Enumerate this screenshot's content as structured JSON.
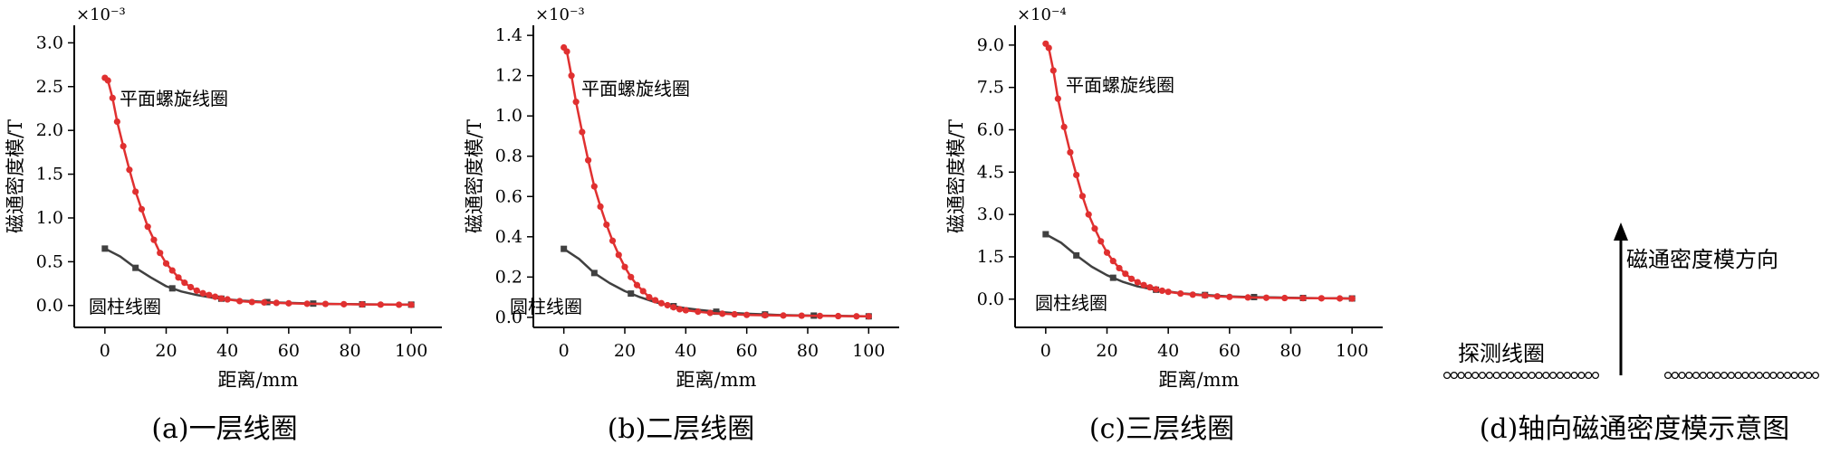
{
  "chart_data": [
    {
      "type": "line",
      "caption": "(a)一层线圈",
      "xlabel": "距离/mm",
      "ylabel": "磁通密度模/T",
      "exponent": "×10⁻³",
      "xlim": [
        -10,
        110
      ],
      "ylim": [
        -0.25,
        3.2
      ],
      "xticks": [
        "0",
        "20",
        "40",
        "60",
        "80",
        "100"
      ],
      "yticks": [
        "0.0",
        "0.5",
        "1.0",
        "1.5",
        "2.0",
        "2.5",
        "3.0"
      ],
      "series": [
        {
          "name": "平面螺旋线圈",
          "color": "#e03030",
          "marker": "circle",
          "x": [
            0,
            1,
            2.5,
            4,
            6,
            8,
            10,
            12,
            14,
            16,
            18,
            20,
            22,
            24,
            26,
            28,
            30,
            32,
            34,
            36,
            38,
            40,
            44,
            48,
            52,
            56,
            60,
            66,
            72,
            78,
            84,
            90,
            96,
            100
          ],
          "y": [
            2.6,
            2.57,
            2.37,
            2.1,
            1.82,
            1.55,
            1.3,
            1.1,
            0.9,
            0.75,
            0.6,
            0.48,
            0.4,
            0.32,
            0.26,
            0.21,
            0.17,
            0.14,
            0.12,
            0.1,
            0.08,
            0.07,
            0.05,
            0.04,
            0.035,
            0.03,
            0.025,
            0.02,
            0.018,
            0.015,
            0.012,
            0.01,
            0.009,
            0.008
          ]
        },
        {
          "name": "圆柱线圈",
          "color": "#404040",
          "marker": "square",
          "x": [
            0,
            5,
            10,
            15,
            20,
            25,
            30,
            35,
            40,
            45,
            50,
            55,
            60,
            65,
            70,
            75,
            80,
            85,
            90,
            95,
            100
          ],
          "y": [
            0.65,
            0.56,
            0.43,
            0.32,
            0.22,
            0.16,
            0.12,
            0.09,
            0.07,
            0.055,
            0.045,
            0.035,
            0.03,
            0.025,
            0.02,
            0.018,
            0.015,
            0.013,
            0.012,
            0.011,
            0.01
          ],
          "markers_at": [
            0,
            10,
            22,
            38,
            53,
            68,
            84,
            100
          ]
        }
      ]
    },
    {
      "type": "line",
      "caption": "(b)二层线圈",
      "xlabel": "距离/mm",
      "ylabel": "磁通密度模/T",
      "exponent": "×10⁻³",
      "xlim": [
        -10,
        110
      ],
      "ylim": [
        -0.05,
        1.45
      ],
      "xticks": [
        "0",
        "20",
        "40",
        "60",
        "80",
        "100"
      ],
      "yticks": [
        "0.0",
        "0.2",
        "0.4",
        "0.6",
        "0.8",
        "1.0",
        "1.2",
        "1.4"
      ],
      "series": [
        {
          "name": "平面螺旋线圈",
          "color": "#e03030",
          "marker": "circle",
          "x": [
            0,
            1,
            2.5,
            4,
            6,
            8,
            10,
            12,
            14,
            16,
            18,
            20,
            22,
            24,
            26,
            28,
            30,
            32,
            34,
            36,
            38,
            40,
            44,
            48,
            52,
            56,
            60,
            66,
            72,
            78,
            84,
            90,
            96,
            100
          ],
          "y": [
            1.34,
            1.32,
            1.2,
            1.07,
            0.92,
            0.78,
            0.65,
            0.55,
            0.46,
            0.38,
            0.31,
            0.25,
            0.2,
            0.16,
            0.13,
            0.1,
            0.085,
            0.07,
            0.06,
            0.05,
            0.04,
            0.035,
            0.028,
            0.022,
            0.018,
            0.015,
            0.012,
            0.01,
            0.009,
            0.008,
            0.007,
            0.006,
            0.005,
            0.005
          ]
        },
        {
          "name": "圆柱线圈",
          "color": "#404040",
          "marker": "square",
          "x": [
            0,
            5,
            10,
            15,
            20,
            25,
            30,
            35,
            40,
            45,
            50,
            55,
            60,
            65,
            70,
            75,
            80,
            85,
            90,
            95,
            100
          ],
          "y": [
            0.34,
            0.29,
            0.22,
            0.17,
            0.13,
            0.1,
            0.075,
            0.058,
            0.045,
            0.036,
            0.028,
            0.022,
            0.018,
            0.015,
            0.012,
            0.01,
            0.009,
            0.008,
            0.007,
            0.006,
            0.005
          ],
          "markers_at": [
            0,
            10,
            22,
            36,
            50,
            66,
            82,
            100
          ]
        }
      ]
    },
    {
      "type": "line",
      "caption": "(c)三层线圈",
      "xlabel": "距离/mm",
      "ylabel": "磁通密度模/T",
      "exponent": "×10⁻⁴",
      "xlim": [
        -10,
        110
      ],
      "ylim": [
        -1.0,
        9.7
      ],
      "xticks": [
        "0",
        "20",
        "40",
        "60",
        "80",
        "100"
      ],
      "yticks": [
        "0.0",
        "1.5",
        "3.0",
        "4.5",
        "6.0",
        "7.5",
        "9.0"
      ],
      "series": [
        {
          "name": "平面螺旋线圈",
          "color": "#e03030",
          "marker": "circle",
          "x": [
            0,
            1,
            2.5,
            4,
            6,
            8,
            10,
            12,
            14,
            16,
            18,
            20,
            22,
            24,
            26,
            28,
            30,
            32,
            34,
            36,
            38,
            40,
            44,
            48,
            52,
            56,
            60,
            66,
            72,
            78,
            84,
            90,
            96,
            100
          ],
          "y": [
            9.05,
            8.9,
            8.1,
            7.1,
            6.1,
            5.2,
            4.4,
            3.65,
            3.0,
            2.5,
            2.05,
            1.65,
            1.35,
            1.1,
            0.9,
            0.72,
            0.6,
            0.5,
            0.42,
            0.35,
            0.3,
            0.26,
            0.2,
            0.16,
            0.13,
            0.1,
            0.08,
            0.06,
            0.05,
            0.04,
            0.035,
            0.03,
            0.025,
            0.02
          ]
        },
        {
          "name": "圆柱线圈",
          "color": "#404040",
          "marker": "square",
          "x": [
            0,
            5,
            10,
            15,
            20,
            25,
            30,
            35,
            40,
            45,
            50,
            55,
            60,
            65,
            70,
            75,
            80,
            85,
            90,
            95,
            100
          ],
          "y": [
            2.3,
            2.0,
            1.55,
            1.15,
            0.85,
            0.62,
            0.45,
            0.35,
            0.27,
            0.2,
            0.16,
            0.13,
            0.1,
            0.08,
            0.07,
            0.06,
            0.05,
            0.04,
            0.035,
            0.03,
            0.025
          ],
          "markers_at": [
            0,
            10,
            22,
            36,
            52,
            68,
            84,
            100
          ]
        }
      ]
    }
  ],
  "diagram_d": {
    "caption": "(d)轴向磁通密度模示意图",
    "coil_label": "探测线圈",
    "arrow_label": "磁通密度模方向",
    "coil_left_count": 22,
    "coil_right_count": 22
  },
  "colors": {
    "red": "#e03030",
    "gray": "#404040",
    "axis": "#000000"
  }
}
